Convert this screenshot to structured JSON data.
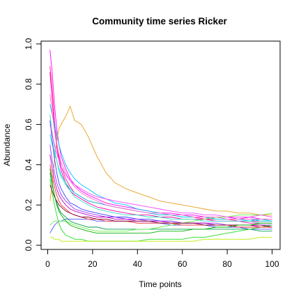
{
  "chart_data": {
    "type": "line",
    "title": "Community time series Ricker",
    "xlabel": "Time points",
    "ylabel": "Abundance",
    "xlim": [
      0,
      100
    ],
    "ylim": [
      0,
      1.0
    ],
    "xticks": [
      "0",
      "20",
      "40",
      "60",
      "80",
      "100"
    ],
    "yticks": [
      "0.0",
      "0.2",
      "0.4",
      "0.6",
      "0.8",
      "1.0"
    ],
    "grid": false,
    "legend": "none",
    "x": [
      1,
      2,
      3,
      4,
      5,
      6,
      8,
      10,
      12,
      15,
      18,
      22,
      26,
      30,
      35,
      40,
      45,
      50,
      55,
      60,
      65,
      70,
      75,
      80,
      85,
      90,
      95,
      100
    ],
    "series": [
      {
        "color": "#ff00ff",
        "values": [
          0.97,
          0.86,
          0.7,
          0.58,
          0.5,
          0.44,
          0.38,
          0.33,
          0.3,
          0.27,
          0.25,
          0.23,
          0.21,
          0.2,
          0.19,
          0.18,
          0.17,
          0.16,
          0.16,
          0.15,
          0.15,
          0.14,
          0.14,
          0.14,
          0.13,
          0.14,
          0.13,
          0.13
        ]
      },
      {
        "color": "#ff1493",
        "values": [
          0.89,
          0.78,
          0.62,
          0.51,
          0.44,
          0.39,
          0.33,
          0.29,
          0.26,
          0.24,
          0.22,
          0.21,
          0.2,
          0.19,
          0.18,
          0.17,
          0.16,
          0.15,
          0.15,
          0.14,
          0.14,
          0.13,
          0.13,
          0.13,
          0.12,
          0.12,
          0.12,
          0.12
        ]
      },
      {
        "color": "#ff00aa",
        "values": [
          0.86,
          0.72,
          0.58,
          0.49,
          0.42,
          0.37,
          0.31,
          0.27,
          0.25,
          0.23,
          0.21,
          0.19,
          0.18,
          0.17,
          0.16,
          0.15,
          0.15,
          0.14,
          0.14,
          0.13,
          0.13,
          0.13,
          0.12,
          0.12,
          0.12,
          0.11,
          0.11,
          0.11
        ]
      },
      {
        "color": "#e8a020",
        "values": [
          0.22,
          0.3,
          0.42,
          0.52,
          0.58,
          0.6,
          0.64,
          0.69,
          0.62,
          0.6,
          0.54,
          0.44,
          0.36,
          0.31,
          0.28,
          0.26,
          0.24,
          0.22,
          0.21,
          0.2,
          0.19,
          0.18,
          0.17,
          0.17,
          0.16,
          0.16,
          0.15,
          0.15
        ]
      },
      {
        "color": "#00c0ff",
        "values": [
          0.7,
          0.65,
          0.6,
          0.55,
          0.5,
          0.46,
          0.4,
          0.36,
          0.33,
          0.3,
          0.28,
          0.25,
          0.23,
          0.21,
          0.2,
          0.18,
          0.17,
          0.16,
          0.15,
          0.15,
          0.14,
          0.14,
          0.13,
          0.13,
          0.13,
          0.12,
          0.13,
          0.12
        ]
      },
      {
        "color": "#00d8e0",
        "values": [
          0.55,
          0.5,
          0.46,
          0.42,
          0.38,
          0.35,
          0.31,
          0.28,
          0.26,
          0.24,
          0.22,
          0.21,
          0.2,
          0.19,
          0.18,
          0.17,
          0.16,
          0.15,
          0.15,
          0.14,
          0.14,
          0.14,
          0.13,
          0.13,
          0.13,
          0.13,
          0.12,
          0.12
        ]
      },
      {
        "color": "#3a40ff",
        "values": [
          0.62,
          0.52,
          0.43,
          0.36,
          0.31,
          0.28,
          0.24,
          0.21,
          0.2,
          0.18,
          0.17,
          0.16,
          0.15,
          0.14,
          0.14,
          0.13,
          0.13,
          0.12,
          0.12,
          0.11,
          0.11,
          0.11,
          0.1,
          0.1,
          0.1,
          0.1,
          0.1,
          0.1
        ]
      },
      {
        "color": "#5050ff",
        "values": [
          0.06,
          0.08,
          0.1,
          0.11,
          0.12,
          0.12,
          0.13,
          0.13,
          0.13,
          0.13,
          0.13,
          0.12,
          0.12,
          0.12,
          0.12,
          0.11,
          0.11,
          0.11,
          0.1,
          0.1,
          0.1,
          0.1,
          0.09,
          0.09,
          0.09,
          0.08,
          0.08,
          0.08
        ]
      },
      {
        "color": "#9b30ff",
        "values": [
          0.5,
          0.42,
          0.36,
          0.31,
          0.28,
          0.25,
          0.22,
          0.2,
          0.18,
          0.17,
          0.16,
          0.15,
          0.14,
          0.14,
          0.13,
          0.13,
          0.12,
          0.12,
          0.12,
          0.11,
          0.11,
          0.11,
          0.11,
          0.1,
          0.1,
          0.1,
          0.1,
          0.1
        ]
      },
      {
        "color": "#c000c0",
        "values": [
          0.45,
          0.38,
          0.32,
          0.28,
          0.25,
          0.23,
          0.2,
          0.18,
          0.17,
          0.16,
          0.15,
          0.14,
          0.14,
          0.13,
          0.13,
          0.12,
          0.12,
          0.12,
          0.11,
          0.11,
          0.11,
          0.11,
          0.1,
          0.1,
          0.1,
          0.1,
          0.09,
          0.09
        ]
      },
      {
        "color": "#00a050",
        "values": [
          0.36,
          0.3,
          0.25,
          0.21,
          0.18,
          0.16,
          0.14,
          0.12,
          0.11,
          0.1,
          0.09,
          0.09,
          0.08,
          0.08,
          0.08,
          0.08,
          0.08,
          0.08,
          0.08,
          0.08,
          0.08,
          0.08,
          0.08,
          0.08,
          0.08,
          0.08,
          0.07,
          0.07
        ]
      },
      {
        "color": "#22dd22",
        "values": [
          0.33,
          0.26,
          0.2,
          0.15,
          0.11,
          0.08,
          0.05,
          0.04,
          0.03,
          0.03,
          0.02,
          0.02,
          0.02,
          0.02,
          0.02,
          0.02,
          0.03,
          0.03,
          0.03,
          0.03,
          0.04,
          0.04,
          0.05,
          0.06,
          0.07,
          0.08,
          0.09,
          0.1
        ]
      },
      {
        "color": "#66ee44",
        "values": [
          0.1,
          0.11,
          0.12,
          0.12,
          0.12,
          0.12,
          0.12,
          0.11,
          0.1,
          0.09,
          0.08,
          0.07,
          0.07,
          0.07,
          0.07,
          0.08,
          0.08,
          0.09,
          0.1,
          0.11,
          0.12,
          0.13,
          0.14,
          0.14,
          0.15,
          0.15,
          0.15,
          0.16
        ]
      },
      {
        "color": "#bbee00",
        "values": [
          0.04,
          0.04,
          0.03,
          0.03,
          0.03,
          0.02,
          0.02,
          0.02,
          0.02,
          0.02,
          0.02,
          0.02,
          0.02,
          0.02,
          0.02,
          0.02,
          0.02,
          0.02,
          0.02,
          0.02,
          0.02,
          0.03,
          0.03,
          0.03,
          0.03,
          0.03,
          0.04,
          0.04
        ]
      },
      {
        "color": "#ff3030",
        "values": [
          0.4,
          0.34,
          0.29,
          0.25,
          0.22,
          0.2,
          0.18,
          0.16,
          0.15,
          0.14,
          0.13,
          0.13,
          0.12,
          0.12,
          0.12,
          0.11,
          0.11,
          0.11,
          0.11,
          0.1,
          0.1,
          0.1,
          0.1,
          0.1,
          0.09,
          0.09,
          0.09,
          0.09
        ]
      },
      {
        "color": "#7a0030",
        "values": [
          0.3,
          0.27,
          0.24,
          0.22,
          0.2,
          0.19,
          0.17,
          0.16,
          0.15,
          0.14,
          0.14,
          0.13,
          0.13,
          0.12,
          0.12,
          0.12,
          0.12,
          0.11,
          0.11,
          0.11,
          0.11,
          0.1,
          0.1,
          0.1,
          0.1,
          0.1,
          0.1,
          0.09
        ]
      },
      {
        "color": "#ff66cc",
        "values": [
          0.75,
          0.66,
          0.57,
          0.5,
          0.45,
          0.41,
          0.36,
          0.32,
          0.29,
          0.26,
          0.24,
          0.22,
          0.2,
          0.19,
          0.18,
          0.17,
          0.16,
          0.16,
          0.15,
          0.15,
          0.14,
          0.14,
          0.14,
          0.13,
          0.13,
          0.13,
          0.13,
          0.13
        ]
      },
      {
        "color": "#30e0c0",
        "values": [
          0.65,
          0.56,
          0.48,
          0.42,
          0.37,
          0.34,
          0.3,
          0.27,
          0.24,
          0.22,
          0.2,
          0.18,
          0.17,
          0.16,
          0.15,
          0.15,
          0.14,
          0.14,
          0.13,
          0.13,
          0.13,
          0.12,
          0.12,
          0.12,
          0.12,
          0.12,
          0.11,
          0.11
        ]
      },
      {
        "color": "#ff44ff",
        "values": [
          0.6,
          0.55,
          0.5,
          0.46,
          0.42,
          0.39,
          0.35,
          0.32,
          0.3,
          0.28,
          0.26,
          0.24,
          0.23,
          0.22,
          0.21,
          0.2,
          0.19,
          0.18,
          0.17,
          0.16,
          0.16,
          0.15,
          0.15,
          0.14,
          0.14,
          0.14,
          0.15,
          0.14
        ]
      },
      {
        "color": "#00b000",
        "values": [
          0.38,
          0.31,
          0.25,
          0.2,
          0.17,
          0.15,
          0.12,
          0.1,
          0.09,
          0.08,
          0.07,
          0.06,
          0.06,
          0.06,
          0.06,
          0.06,
          0.06,
          0.07,
          0.07,
          0.07,
          0.08,
          0.08,
          0.09,
          0.09,
          0.1,
          0.1,
          0.11,
          0.11
        ]
      }
    ]
  }
}
